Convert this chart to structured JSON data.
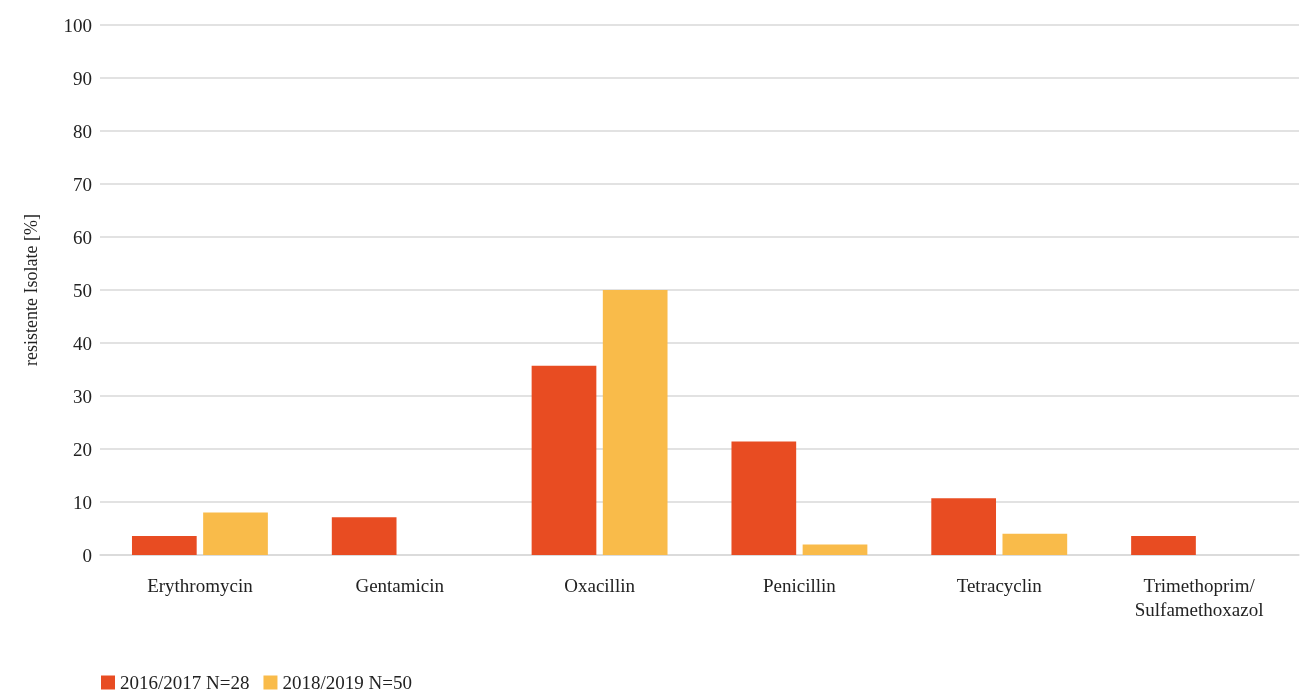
{
  "chart_data": {
    "type": "bar",
    "ylabel": "resistente Isolate [%]",
    "categories": [
      "Erythromycin",
      "Gentamicin",
      "Oxacillin",
      "Penicillin",
      "Tetracyclin",
      "Trimethoprim/Sulfamethoxazol"
    ],
    "series": [
      {
        "name": "2016/2017 N=28",
        "color": "#e84c22",
        "values": [
          3.6,
          7.1,
          35.7,
          21.4,
          10.7,
          3.6
        ]
      },
      {
        "name": "2018/2019 N=50",
        "color": "#f9bb4a",
        "values": [
          8,
          0,
          50,
          2,
          4,
          0
        ]
      }
    ],
    "ylim": [
      0,
      100
    ],
    "yticks": [
      0,
      10,
      20,
      30,
      40,
      50,
      60,
      70,
      80,
      90,
      100
    ],
    "grid": "y",
    "legend": "bottom left"
  }
}
